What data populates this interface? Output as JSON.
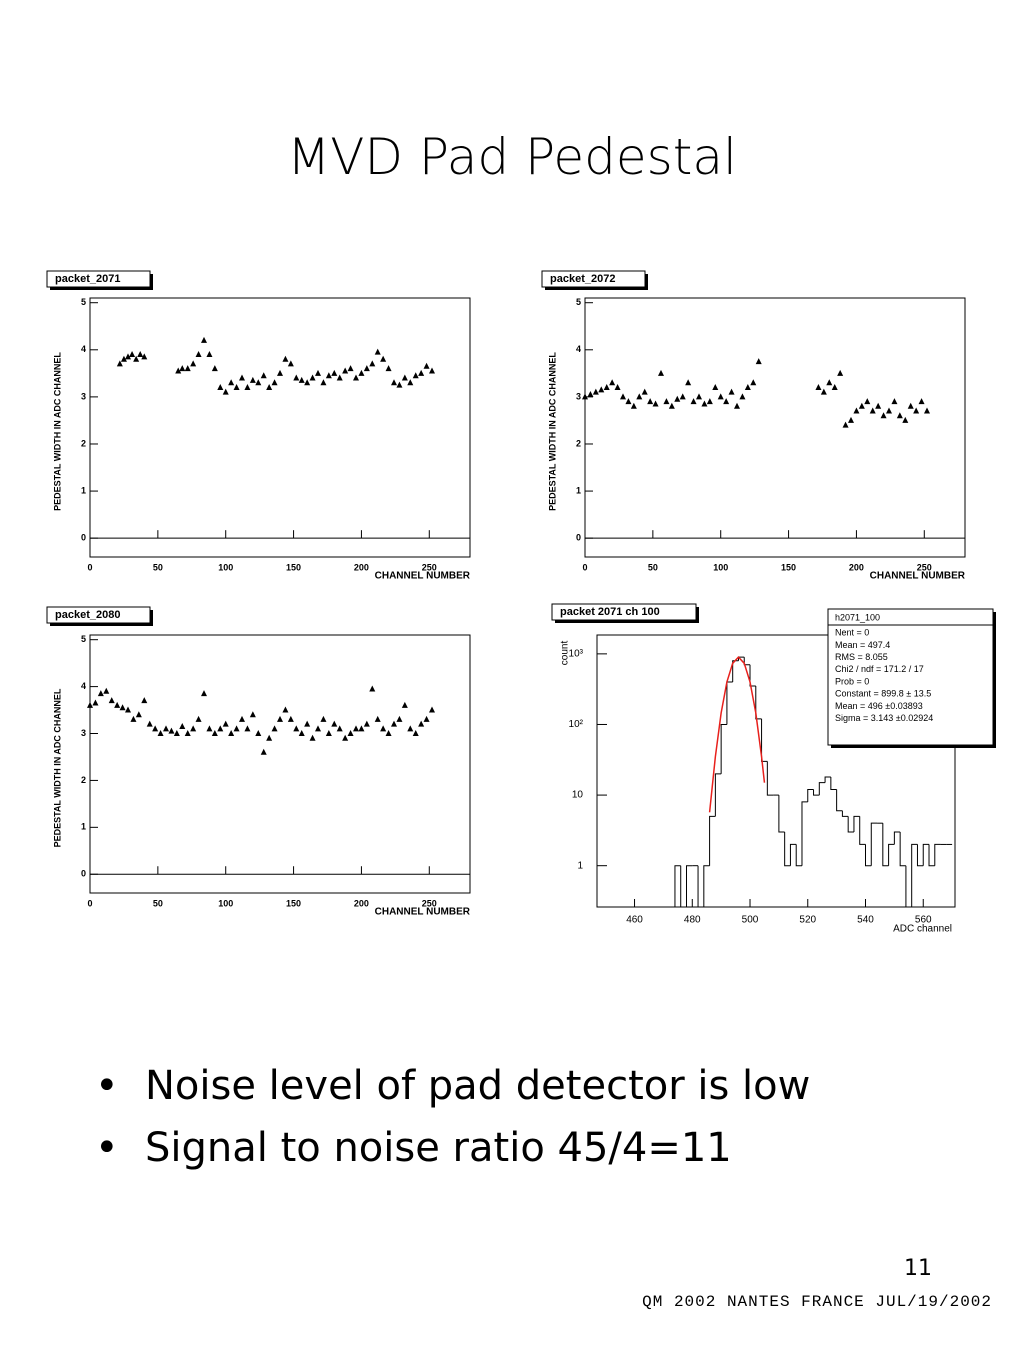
{
  "title": "MVD Pad Pedestal",
  "bullets": [
    "Noise level of pad detector is low",
    "Signal to noise ratio 45/4=11"
  ],
  "page_number": "11",
  "footer": "QM 2002 NANTES FRANCE JUL/19/2002",
  "chart_data": [
    {
      "type": "scatter",
      "title": "packet_2071",
      "xlabel": "CHANNEL NUMBER",
      "ylabel": "PEDESTAL WIDTH IN ADC CHANNEL",
      "color": "#000000",
      "xlim": [
        0,
        280
      ],
      "ylim": [
        -0.4,
        5.1
      ],
      "xticks": [
        0,
        50,
        100,
        150,
        200,
        250
      ],
      "yticks": [
        0,
        1,
        2,
        3,
        4,
        5
      ],
      "x": [
        22,
        25,
        28,
        31,
        34,
        37,
        40,
        65,
        68,
        72,
        76,
        80,
        84,
        88,
        92,
        96,
        100,
        104,
        108,
        112,
        116,
        120,
        124,
        128,
        132,
        136,
        140,
        144,
        148,
        152,
        156,
        160,
        164,
        168,
        172,
        176,
        180,
        184,
        188,
        192,
        196,
        200,
        204,
        208,
        212,
        216,
        220,
        224,
        228,
        232,
        236,
        240,
        244,
        248,
        252
      ],
      "values": [
        3.7,
        3.8,
        3.85,
        3.9,
        3.8,
        3.9,
        3.85,
        3.55,
        3.6,
        3.6,
        3.7,
        3.9,
        4.2,
        3.9,
        3.6,
        3.2,
        3.1,
        3.3,
        3.2,
        3.4,
        3.2,
        3.35,
        3.3,
        3.45,
        3.2,
        3.3,
        3.5,
        3.8,
        3.7,
        3.4,
        3.35,
        3.3,
        3.4,
        3.5,
        3.3,
        3.45,
        3.5,
        3.4,
        3.55,
        3.6,
        3.4,
        3.5,
        3.6,
        3.7,
        3.95,
        3.8,
        3.6,
        3.3,
        3.25,
        3.4,
        3.3,
        3.45,
        3.5,
        3.65,
        3.55
      ]
    },
    {
      "type": "scatter",
      "title": "packet_2072",
      "xlabel": "CHANNEL NUMBER",
      "ylabel": "PEDESTAL WIDTH IN ADC CHANNEL",
      "color": "#000000",
      "xlim": [
        0,
        280
      ],
      "ylim": [
        -0.4,
        5.1
      ],
      "xticks": [
        0,
        50,
        100,
        150,
        200,
        250
      ],
      "yticks": [
        0,
        1,
        2,
        3,
        4,
        5
      ],
      "x": [
        0,
        4,
        8,
        12,
        16,
        20,
        24,
        28,
        32,
        36,
        40,
        44,
        48,
        52,
        56,
        60,
        64,
        68,
        72,
        76,
        80,
        84,
        88,
        92,
        96,
        100,
        104,
        108,
        112,
        116,
        120,
        124,
        128,
        172,
        176,
        180,
        184,
        188,
        192,
        196,
        200,
        204,
        208,
        212,
        216,
        220,
        224,
        228,
        232,
        236,
        240,
        244,
        248,
        252
      ],
      "values": [
        3.0,
        3.05,
        3.1,
        3.15,
        3.2,
        3.3,
        3.2,
        3.0,
        2.9,
        2.8,
        3.0,
        3.1,
        2.9,
        2.85,
        3.5,
        2.9,
        2.8,
        2.95,
        3.0,
        3.3,
        2.9,
        3.0,
        2.85,
        2.9,
        3.2,
        3.0,
        2.9,
        3.1,
        2.8,
        3.0,
        3.2,
        3.3,
        3.75,
        3.2,
        3.1,
        3.3,
        3.2,
        3.5,
        2.4,
        2.5,
        2.7,
        2.8,
        2.9,
        2.7,
        2.8,
        2.6,
        2.7,
        2.9,
        2.6,
        2.5,
        2.8,
        2.7,
        2.9,
        2.7
      ]
    },
    {
      "type": "scatter",
      "title": "packet_2080",
      "xlabel": "CHANNEL NUMBER",
      "ylabel": "PEDESTAL WIDTH IN ADC CHANNEL",
      "color": "#000000",
      "xlim": [
        0,
        280
      ],
      "ylim": [
        -0.4,
        5.1
      ],
      "xticks": [
        0,
        50,
        100,
        150,
        200,
        250
      ],
      "yticks": [
        0,
        1,
        2,
        3,
        4,
        5
      ],
      "x": [
        0,
        4,
        8,
        12,
        16,
        20,
        24,
        28,
        32,
        36,
        40,
        44,
        48,
        52,
        56,
        60,
        64,
        68,
        72,
        76,
        80,
        84,
        88,
        92,
        96,
        100,
        104,
        108,
        112,
        116,
        120,
        124,
        128,
        132,
        136,
        140,
        144,
        148,
        152,
        156,
        160,
        164,
        168,
        172,
        176,
        180,
        184,
        188,
        192,
        196,
        200,
        204,
        208,
        212,
        216,
        220,
        224,
        228,
        232,
        236,
        240,
        244,
        248,
        252
      ],
      "values": [
        3.6,
        3.65,
        3.85,
        3.9,
        3.7,
        3.6,
        3.55,
        3.5,
        3.3,
        3.4,
        3.7,
        3.2,
        3.1,
        3.0,
        3.1,
        3.05,
        3.0,
        3.15,
        3.0,
        3.1,
        3.3,
        3.85,
        3.1,
        3.0,
        3.1,
        3.2,
        3.0,
        3.1,
        3.3,
        3.1,
        3.4,
        3.0,
        2.6,
        2.9,
        3.1,
        3.3,
        3.5,
        3.3,
        3.1,
        3.0,
        3.2,
        2.9,
        3.1,
        3.3,
        3.0,
        3.2,
        3.1,
        2.9,
        3.0,
        3.1,
        3.1,
        3.2,
        3.95,
        3.3,
        3.1,
        3.0,
        3.2,
        3.3,
        3.6,
        3.1,
        3.0,
        3.2,
        3.3,
        3.5
      ]
    },
    {
      "type": "histogram",
      "title": "packet 2071 ch 100",
      "xlabel": "ADC channel",
      "ylabel": "count",
      "color": "#000000",
      "log_y": true,
      "xlim": [
        447,
        571
      ],
      "ylim": [
        0.26,
        1850
      ],
      "xticks": [
        460,
        480,
        500,
        520,
        540,
        560
      ],
      "yticks": [
        1,
        10,
        {
          "value": 100,
          "label": "10²"
        },
        {
          "value": 1000,
          "label": "10³"
        }
      ],
      "bins": [
        470,
        472,
        474,
        476,
        478,
        480,
        482,
        484,
        486,
        488,
        490,
        492,
        494,
        496,
        498,
        500,
        502,
        504,
        506,
        508,
        510,
        512,
        514,
        516,
        518,
        520,
        522,
        524,
        526,
        528,
        530,
        532,
        534,
        536,
        538,
        540,
        542,
        544,
        546,
        548,
        550,
        552,
        554,
        556,
        558,
        560,
        562,
        564,
        566,
        568,
        570
      ],
      "counts": [
        0,
        0,
        1,
        0,
        1,
        1,
        0,
        1,
        5,
        20,
        100,
        400,
        800,
        900,
        700,
        350,
        120,
        30,
        10,
        10,
        3,
        1,
        2,
        1,
        8,
        12,
        10,
        15,
        18,
        12,
        6,
        5,
        3,
        5,
        2,
        1,
        4,
        4,
        1,
        2,
        3,
        1,
        0,
        2,
        1,
        2,
        1,
        2,
        2,
        2
      ],
      "fit": {
        "color": "#e8201c",
        "x": [
          486,
          488,
          490,
          492,
          494,
          496,
          498,
          500,
          502,
          504,
          505
        ],
        "values": [
          5.7,
          35,
          146,
          400,
          735,
          899.8,
          735,
          400,
          146,
          35,
          15
        ]
      },
      "stats": [
        "h2071_100",
        "Nent = 0",
        "Mean  =  497.4",
        "RMS   =  8.055",
        "Chi2 / ndf = 171.2 / 17",
        "Prob  =     0",
        "Constant = 899.8   ±  13.5",
        "Mean     =   496  ±0.03893",
        "Sigma    = 3.143   ±0.02924"
      ]
    }
  ]
}
